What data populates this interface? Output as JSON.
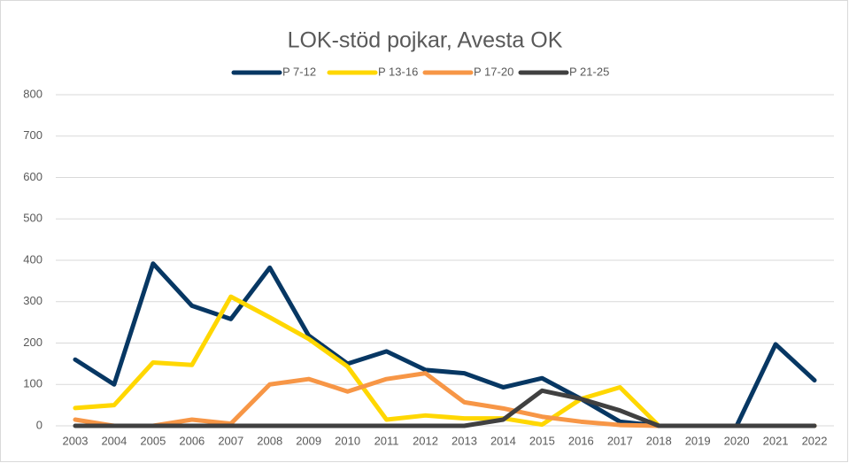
{
  "chart_data": {
    "type": "line",
    "title": "LOK-stöd pojkar, Avesta OK",
    "categories": [
      "2003",
      "2004",
      "2005",
      "2006",
      "2007",
      "2008",
      "2009",
      "2010",
      "2011",
      "2012",
      "2013",
      "2014",
      "2015",
      "2016",
      "2017",
      "2018",
      "2019",
      "2020",
      "2021",
      "2022"
    ],
    "series": [
      {
        "name": "P 7-12",
        "color": "#073763",
        "values": [
          160,
          100,
          392,
          290,
          258,
          382,
          218,
          150,
          180,
          135,
          127,
          93,
          115,
          65,
          10,
          0,
          0,
          0,
          197,
          110
        ]
      },
      {
        "name": "P 13-16",
        "color": "#ffd700",
        "values": [
          43,
          50,
          153,
          147,
          312,
          262,
          210,
          143,
          15,
          25,
          18,
          18,
          3,
          65,
          93,
          0,
          0,
          0,
          0,
          0
        ]
      },
      {
        "name": "P 17-20",
        "color": "#f79646",
        "values": [
          15,
          0,
          0,
          15,
          5,
          100,
          113,
          83,
          113,
          127,
          57,
          42,
          22,
          10,
          2,
          0,
          0,
          0,
          0,
          0
        ]
      },
      {
        "name": "P 21-25",
        "color": "#404040",
        "values": [
          0,
          0,
          0,
          0,
          0,
          0,
          0,
          0,
          0,
          0,
          0,
          15,
          85,
          65,
          37,
          0,
          0,
          0,
          0,
          0
        ]
      }
    ],
    "ylim": [
      0,
      800
    ],
    "yticks": [
      0,
      100,
      200,
      300,
      400,
      500,
      600,
      700,
      800
    ],
    "grid": true,
    "legend": "top"
  }
}
